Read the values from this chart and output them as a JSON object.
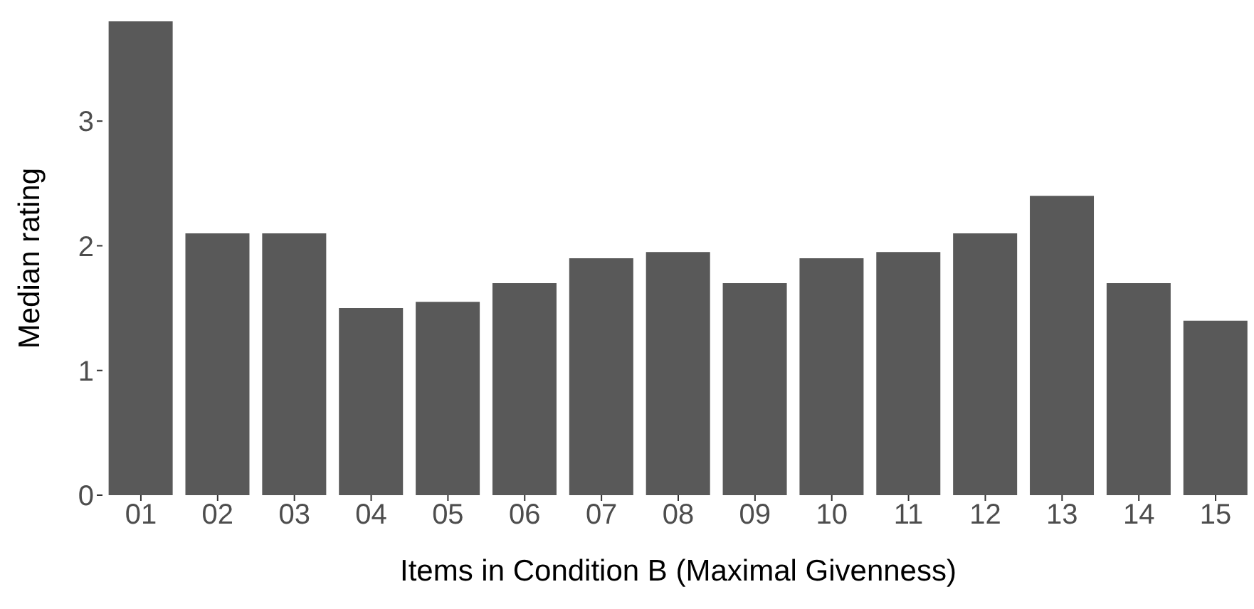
{
  "chart_data": {
    "type": "bar",
    "xlabel": "Items in Condition B (Maximal Givenness)",
    "ylabel": "Median rating",
    "categories": [
      "01",
      "02",
      "03",
      "04",
      "05",
      "06",
      "07",
      "08",
      "09",
      "10",
      "11",
      "12",
      "13",
      "14",
      "15"
    ],
    "values": [
      3.8,
      2.1,
      2.1,
      1.5,
      1.55,
      1.7,
      1.9,
      1.95,
      1.7,
      1.9,
      1.95,
      2.1,
      2.4,
      1.7,
      1.4
    ],
    "color": "#595959",
    "ylim": [
      0,
      3.8
    ],
    "yticks": [
      0,
      1,
      2,
      3
    ],
    "grid": false,
    "legend": false
  }
}
